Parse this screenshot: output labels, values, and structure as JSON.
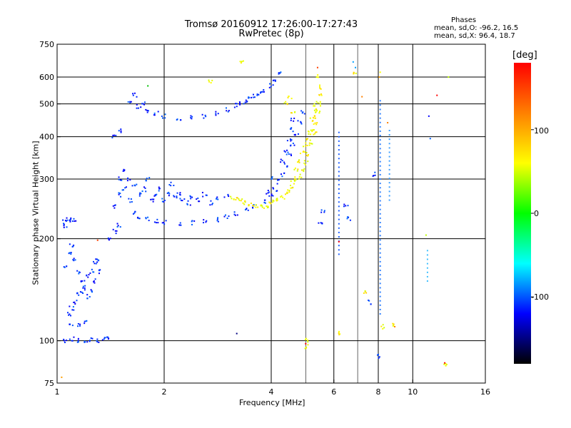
{
  "chart_data": {
    "type": "scatter",
    "title": "Tromsø 20160912 17:26:00-17:27:43",
    "subtitle": "RwPretec (8p)",
    "xlabel": "Frequency [MHz]",
    "ylabel": "Stationary phase Virtual Height [km]",
    "x_scale": "log",
    "y_scale": "log",
    "xlim": [
      1,
      16
    ],
    "ylim": [
      75,
      750
    ],
    "x_ticks": [
      "1",
      "2",
      "4",
      "6",
      "8",
      "10",
      "16"
    ],
    "y_ticks": [
      "75",
      "100",
      "200",
      "300",
      "400",
      "500",
      "600",
      "750"
    ],
    "grid": true,
    "phase_stats": {
      "heading": "Phases",
      "line_o": "mean, sd,O: -96.2, 16.5",
      "line_x": "mean, sd,X:  96.4, 18.7"
    },
    "colorbar": {
      "label": "[deg]",
      "range": [
        -180,
        180
      ],
      "ticks": [
        "100",
        "0",
        "-100"
      ],
      "colors": [
        "#ff0000",
        "#ff8000",
        "#ffff00",
        "#00ff00",
        "#00ffff",
        "#0000ff",
        "#000000"
      ]
    },
    "o_trace": {
      "phase_mean": -96.2,
      "points": [
        [
          1.05,
          100
        ],
        [
          1.1,
          101
        ],
        [
          1.15,
          100
        ],
        [
          1.2,
          100
        ],
        [
          1.25,
          101
        ],
        [
          1.3,
          100
        ],
        [
          1.35,
          101
        ],
        [
          1.4,
          101
        ],
        [
          1.05,
          225
        ],
        [
          1.08,
          230
        ],
        [
          1.1,
          228
        ],
        [
          1.12,
          226
        ],
        [
          1.06,
          218
        ],
        [
          1.05,
          165
        ],
        [
          1.08,
          180
        ],
        [
          1.1,
          190
        ],
        [
          1.12,
          175
        ],
        [
          1.15,
          160
        ],
        [
          1.18,
          150
        ],
        [
          1.2,
          145
        ],
        [
          1.22,
          155
        ],
        [
          1.25,
          160
        ],
        [
          1.28,
          170
        ],
        [
          1.25,
          140
        ],
        [
          1.22,
          135
        ],
        [
          1.18,
          140
        ],
        [
          1.15,
          138
        ],
        [
          1.12,
          130
        ],
        [
          1.1,
          125
        ],
        [
          1.3,
          175
        ],
        [
          1.28,
          150
        ],
        [
          1.32,
          160
        ],
        [
          1.08,
          120
        ],
        [
          1.1,
          112
        ],
        [
          1.15,
          112
        ],
        [
          1.2,
          113
        ],
        [
          1.4,
          200
        ],
        [
          1.45,
          210
        ],
        [
          1.5,
          220
        ],
        [
          1.45,
          250
        ],
        [
          1.5,
          270
        ],
        [
          1.5,
          300
        ],
        [
          1.55,
          280
        ],
        [
          1.6,
          260
        ],
        [
          1.55,
          320
        ],
        [
          1.6,
          300
        ],
        [
          1.65,
          290
        ],
        [
          1.7,
          270
        ],
        [
          1.75,
          280
        ],
        [
          1.8,
          300
        ],
        [
          1.85,
          260
        ],
        [
          1.9,
          270
        ],
        [
          1.95,
          280
        ],
        [
          2.0,
          260
        ],
        [
          2.05,
          270
        ],
        [
          2.1,
          290
        ],
        [
          2.15,
          265
        ],
        [
          2.2,
          270
        ],
        [
          2.25,
          260
        ],
        [
          2.35,
          255
        ],
        [
          1.65,
          240
        ],
        [
          1.7,
          232
        ],
        [
          1.8,
          228
        ],
        [
          1.9,
          225
        ],
        [
          2.0,
          223
        ],
        [
          2.2,
          222
        ],
        [
          2.4,
          223
        ],
        [
          2.6,
          225
        ],
        [
          2.8,
          228
        ],
        [
          3.0,
          232
        ],
        [
          3.2,
          237
        ],
        [
          3.4,
          242
        ],
        [
          3.6,
          250
        ],
        [
          3.8,
          258
        ],
        [
          4.0,
          268
        ],
        [
          4.1,
          280
        ],
        [
          4.2,
          295
        ],
        [
          4.3,
          310
        ],
        [
          4.4,
          330
        ],
        [
          4.5,
          355
        ],
        [
          4.6,
          380
        ],
        [
          4.7,
          410
        ],
        [
          4.8,
          440
        ],
        [
          4.9,
          470
        ],
        [
          4.3,
          340
        ],
        [
          4.4,
          360
        ],
        [
          4.5,
          390
        ],
        [
          4.55,
          420
        ],
        [
          4.6,
          450
        ],
        [
          4.0,
          300
        ],
        [
          3.9,
          275
        ],
        [
          1.6,
          510
        ],
        [
          1.7,
          490
        ],
        [
          1.8,
          475
        ],
        [
          1.9,
          468
        ],
        [
          2.0,
          460
        ],
        [
          2.2,
          455
        ],
        [
          2.4,
          455
        ],
        [
          2.6,
          460
        ],
        [
          2.8,
          470
        ],
        [
          3.0,
          480
        ],
        [
          3.2,
          495
        ],
        [
          3.4,
          510
        ],
        [
          3.6,
          525
        ],
        [
          3.8,
          545
        ],
        [
          4.0,
          565
        ],
        [
          4.1,
          590
        ],
        [
          4.2,
          620
        ],
        [
          1.65,
          530
        ],
        [
          1.75,
          500
        ],
        [
          3.3,
          500
        ],
        [
          3.5,
          520
        ],
        [
          3.7,
          540
        ],
        [
          2.4,
          265
        ],
        [
          2.5,
          260
        ],
        [
          2.6,
          270
        ],
        [
          2.7,
          255
        ],
        [
          2.8,
          262
        ],
        [
          3.0,
          268
        ],
        [
          1.45,
          400
        ],
        [
          1.5,
          415
        ],
        [
          7.6,
          130
        ],
        [
          7.8,
          310
        ],
        [
          8.0,
          90
        ],
        [
          6.5,
          250
        ],
        [
          6.6,
          230
        ],
        [
          5.5,
          220
        ],
        [
          5.6,
          240
        ]
      ]
    },
    "x_trace": {
      "phase_mean": 96.4,
      "points": [
        [
          3.1,
          265
        ],
        [
          3.2,
          262
        ],
        [
          3.3,
          258
        ],
        [
          3.4,
          255
        ],
        [
          3.5,
          252
        ],
        [
          3.6,
          250
        ],
        [
          3.7,
          248
        ],
        [
          3.8,
          248
        ],
        [
          3.9,
          250
        ],
        [
          4.0,
          255
        ],
        [
          4.1,
          260
        ],
        [
          4.2,
          262
        ],
        [
          4.3,
          265
        ],
        [
          4.4,
          270
        ],
        [
          4.5,
          275
        ],
        [
          4.6,
          285
        ],
        [
          4.7,
          295
        ],
        [
          4.8,
          305
        ],
        [
          4.9,
          320
        ],
        [
          5.0,
          335
        ],
        [
          5.1,
          355
        ],
        [
          5.2,
          380
        ],
        [
          5.3,
          410
        ],
        [
          5.35,
          440
        ],
        [
          5.4,
          470
        ],
        [
          5.45,
          500
        ],
        [
          5.5,
          530
        ],
        [
          5.5,
          560
        ],
        [
          5.2,
          420
        ],
        [
          5.25,
          460
        ],
        [
          5.3,
          500
        ],
        [
          5.1,
          390
        ],
        [
          4.6,
          300
        ],
        [
          4.7,
          320
        ],
        [
          4.8,
          340
        ],
        [
          4.9,
          360
        ],
        [
          5.0,
          380
        ],
        [
          5.1,
          410
        ],
        [
          5.2,
          450
        ],
        [
          5.3,
          480
        ],
        [
          4.5,
          520
        ],
        [
          4.6,
          470
        ],
        [
          4.4,
          505
        ],
        [
          3.3,
          665
        ],
        [
          2.7,
          580
        ],
        [
          5.4,
          600
        ],
        [
          6.9,
          620
        ],
        [
          5.0,
          100
        ],
        [
          6.2,
          105
        ],
        [
          8.2,
          110
        ],
        [
          12.3,
          85
        ],
        [
          5.05,
          96
        ],
        [
          7.3,
          140
        ],
        [
          8.8,
          112
        ]
      ]
    },
    "outliers": [
      [
        1.8,
        565,
        "#00c000"
      ],
      [
        3.2,
        105,
        "#000080"
      ],
      [
        5.4,
        640,
        "#ff4000"
      ],
      [
        6.9,
        640,
        "#00a0ff"
      ],
      [
        7.2,
        525,
        "#ff8000"
      ],
      [
        8.1,
        620,
        "#ffff00"
      ],
      [
        6.2,
        196,
        "#ff0000"
      ],
      [
        5.0,
        98,
        "#ff0000"
      ],
      [
        11.2,
        395,
        "#0060ff"
      ],
      [
        11.7,
        530,
        "#ff0000"
      ],
      [
        12.3,
        86,
        "#ff0000"
      ],
      [
        12.6,
        600,
        "#c0ff00"
      ],
      [
        1.03,
        78,
        "#ffa000"
      ],
      [
        1.3,
        198,
        "#ff4000"
      ],
      [
        8.05,
        600,
        "#ffa000"
      ],
      [
        6.8,
        665,
        "#00a0ff"
      ],
      [
        8.9,
        110,
        "#ff8000"
      ],
      [
        11.1,
        460,
        "#0000ff"
      ],
      [
        10.9,
        205,
        "#c0ff00"
      ],
      [
        8.5,
        440,
        "#ff8000"
      ]
    ],
    "vertical_traces": [
      {
        "x": 6.2,
        "y_min": 180,
        "y_max": 420,
        "color": "#2060ff"
      },
      {
        "x": 8.1,
        "y_min": 120,
        "y_max": 520,
        "color": "#3080ff"
      },
      {
        "x": 8.6,
        "y_min": 260,
        "y_max": 420,
        "color": "#40a0ff"
      },
      {
        "x": 11.0,
        "y_min": 150,
        "y_max": 190,
        "color": "#40c0ff"
      }
    ]
  }
}
